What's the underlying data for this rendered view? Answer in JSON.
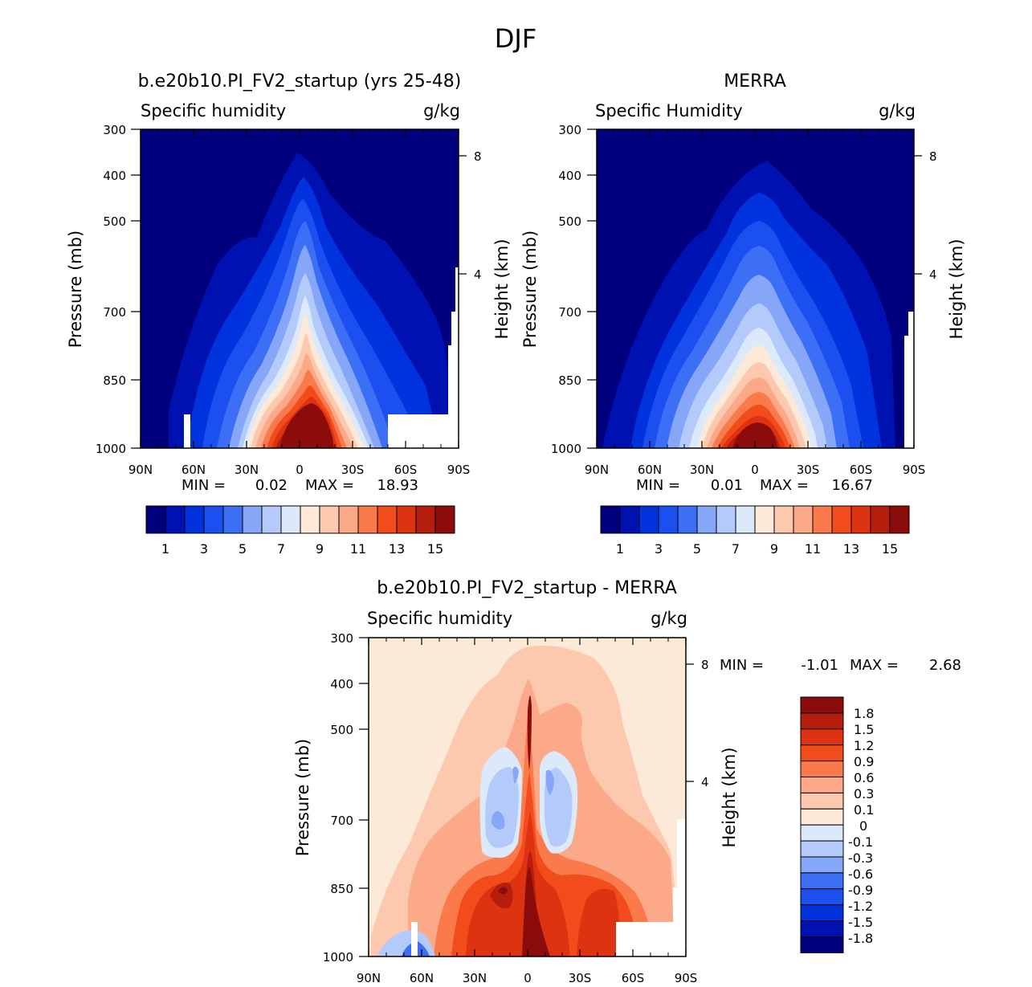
{
  "figure": {
    "title": "DJF",
    "colors": {
      "humidity_levels": [
        "#00007f",
        "#0011b1",
        "#0033dd",
        "#1c4ff0",
        "#3c6ef6",
        "#86a7f7",
        "#b4cafa",
        "#dbe9fb",
        "#fde9d8",
        "#fcc9ae",
        "#fca98a",
        "#fb7a4c",
        "#f34c1c",
        "#dd3311",
        "#b51d0c",
        "#8c0c0c"
      ],
      "diff_levels": [
        "#00007f",
        "#0011b1",
        "#0033dd",
        "#1c4ff0",
        "#3c6ef6",
        "#86a7f7",
        "#b4cafa",
        "#dbe9fb",
        "#fde9d8",
        "#fcc9ae",
        "#fca98a",
        "#fb7a4c",
        "#f34c1c",
        "#dd3311",
        "#b51d0c",
        "#8c0c0c"
      ]
    }
  },
  "panels": {
    "model": {
      "title": "b.e20b10.PI_FV2_startup (yrs 25-48)",
      "left_label": "Specific humidity",
      "units": "g/kg",
      "ylabel": "Pressure (mb)",
      "right_label": "Height (km)",
      "min_label": "MIN =",
      "min_value": "0.02",
      "max_label": "MAX =",
      "max_value": "18.93",
      "colorbar_labels": [
        "1",
        "3",
        "5",
        "7",
        "9",
        "11",
        "13",
        "15"
      ]
    },
    "obs": {
      "title": "MERRA",
      "left_label": "Specific Humidity",
      "units": "g/kg",
      "ylabel": "Pressure (mb)",
      "right_label": "Height (km)",
      "min_label": "MIN =",
      "min_value": "0.01",
      "max_label": "MAX =",
      "max_value": "16.67",
      "colorbar_labels": [
        "1",
        "3",
        "5",
        "7",
        "9",
        "11",
        "13",
        "15"
      ]
    },
    "diff": {
      "title": "b.e20b10.PI_FV2_startup - MERRA",
      "left_label": "Specific humidity",
      "units": "g/kg",
      "ylabel": "Pressure (mb)",
      "right_label": "Height (km)",
      "min_label": "MIN =",
      "min_value": "-1.01",
      "max_label": "MAX =",
      "max_value": "2.68",
      "colorbar_labels": [
        "1.8",
        "1.5",
        "1.2",
        "0.9",
        "0.6",
        "0.3",
        "0.1",
        "0",
        "-0.1",
        "-0.3",
        "-0.6",
        "-0.9",
        "-1.2",
        "-1.5",
        "-1.8"
      ]
    }
  },
  "axes": {
    "x_ticks": [
      "90N",
      "60N",
      "30N",
      "0",
      "30S",
      "60S",
      "90S"
    ],
    "y_ticks": [
      "300",
      "400",
      "500",
      "700",
      "850",
      "1000"
    ],
    "height_ticks": [
      "8",
      "4"
    ]
  },
  "chart_data": [
    {
      "type": "heatmap",
      "title": "b.e20b10.PI_FV2_startup (yrs 25-48)",
      "xlabel": "",
      "ylabel": "Pressure (mb)",
      "x": [
        "90N",
        "60N",
        "30N",
        "0",
        "30S",
        "60S",
        "90S"
      ],
      "y_pressure_mb": [
        300,
        400,
        500,
        700,
        850,
        1000
      ],
      "levels": [
        1,
        2,
        3,
        4,
        5,
        6,
        7,
        8,
        9,
        10,
        11,
        12,
        13,
        14,
        15
      ],
      "level_labels": [
        1,
        3,
        5,
        7,
        9,
        11,
        13,
        15
      ],
      "units": "g/kg",
      "min": 0.02,
      "max": 18.93
    },
    {
      "type": "heatmap",
      "title": "MERRA",
      "xlabel": "",
      "ylabel": "Pressure (mb)",
      "x": [
        "90N",
        "60N",
        "30N",
        "0",
        "30S",
        "60S",
        "90S"
      ],
      "y_pressure_mb": [
        300,
        400,
        500,
        700,
        850,
        1000
      ],
      "levels": [
        1,
        2,
        3,
        4,
        5,
        6,
        7,
        8,
        9,
        10,
        11,
        12,
        13,
        14,
        15
      ],
      "level_labels": [
        1,
        3,
        5,
        7,
        9,
        11,
        13,
        15
      ],
      "units": "g/kg",
      "min": 0.01,
      "max": 16.67
    },
    {
      "type": "heatmap",
      "title": "b.e20b10.PI_FV2_startup - MERRA",
      "xlabel": "",
      "ylabel": "Pressure (mb)",
      "x": [
        "90N",
        "60N",
        "30N",
        "0",
        "30S",
        "60S",
        "90S"
      ],
      "y_pressure_mb": [
        300,
        400,
        500,
        700,
        850,
        1000
      ],
      "levels": [
        -1.8,
        -1.5,
        -1.2,
        -0.9,
        -0.6,
        -0.3,
        -0.1,
        0,
        0.1,
        0.3,
        0.6,
        0.9,
        1.2,
        1.5,
        1.8
      ],
      "units": "g/kg",
      "min": -1.01,
      "max": 2.68
    }
  ]
}
